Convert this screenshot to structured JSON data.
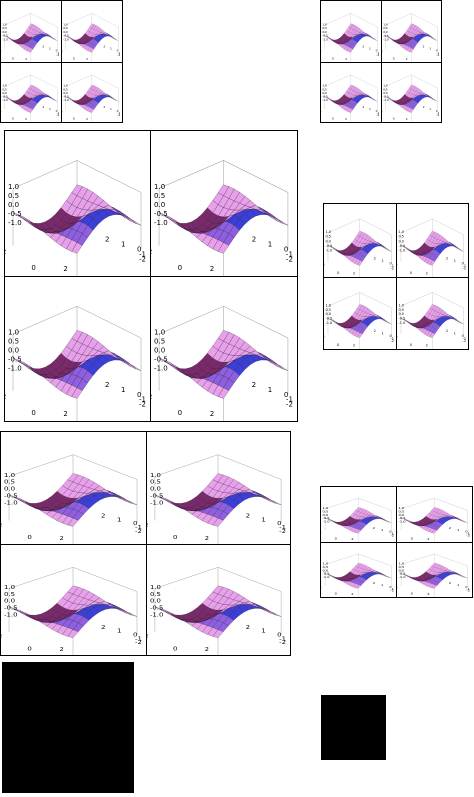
{
  "style": {
    "background": "#ffffff",
    "border": "#000000",
    "surface_top": "#3b3fd8",
    "surface_mid": "#8f5fe0",
    "surface_low": "#e9a0ea",
    "surface_deep": "#7a2a6a",
    "mesh": "#1a1a2e"
  },
  "plot_labels": {
    "z_ticks": [
      "1.0",
      "0.5",
      "0.0",
      "-0.5",
      "-1.0"
    ],
    "x_ticks": [
      "-2",
      "0",
      "2"
    ],
    "y_ticks": [
      "2",
      "1",
      "0",
      "-1",
      "-2"
    ]
  },
  "blocks": [
    {
      "name": "grid-top-left",
      "cells": 4
    },
    {
      "name": "grid-top-right",
      "cells": 4
    },
    {
      "name": "grid-large-middle",
      "cells": 4
    },
    {
      "name": "grid-mid-right",
      "cells": 4
    },
    {
      "name": "grid-large-lower",
      "cells": 4
    },
    {
      "name": "grid-lower-right",
      "cells": 4
    }
  ]
}
